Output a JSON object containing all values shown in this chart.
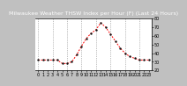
{
  "title": "Milwaukee Weather THSW Index per Hour (F) (Last 24 Hours)",
  "x_values": [
    0,
    1,
    2,
    3,
    4,
    5,
    6,
    7,
    8,
    9,
    10,
    11,
    12,
    13,
    14,
    15,
    16,
    17,
    18,
    19,
    20,
    21,
    22,
    23
  ],
  "y_values": [
    32,
    32,
    32,
    32,
    32,
    28,
    28,
    30,
    38,
    48,
    57,
    63,
    67,
    75,
    70,
    62,
    54,
    46,
    40,
    36,
    34,
    32,
    32,
    32
  ],
  "line_color": "#ff0000",
  "marker_color": "#111111",
  "plot_bg_color": "#ffffff",
  "fig_bg_color": "#c0c0c0",
  "title_bg_color": "#000000",
  "title_text_color": "#ffffff",
  "grid_color": "#888888",
  "ylim_min": 20,
  "ylim_max": 80,
  "y_tick_values": [
    20,
    30,
    40,
    50,
    60,
    70,
    80
  ],
  "title_fontsize": 4.5,
  "tick_fontsize": 3.5,
  "grid_x_positions": [
    0,
    3,
    6,
    9,
    12,
    15,
    18,
    21
  ]
}
